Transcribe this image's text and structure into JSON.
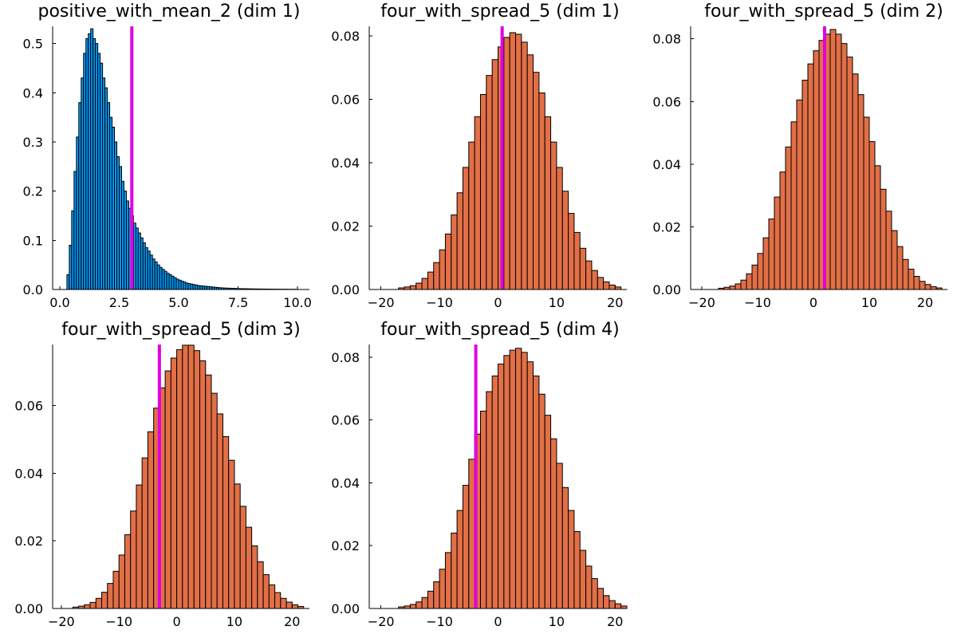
{
  "chart_data": [
    {
      "type": "bar",
      "title": "positive_with_mean_2 (dim 1)",
      "bar_color": "#009AFA",
      "marker_color": "#E100E1",
      "marker_x": 3.03,
      "xlim": [
        -0.3,
        10.5
      ],
      "ylim": [
        0,
        0.535
      ],
      "xticks": [
        0,
        2.5,
        5,
        7.5,
        10
      ],
      "xtick_labels": [
        "0.0",
        "2.5",
        "5.0",
        "7.5",
        "10.0"
      ],
      "yticks": [
        0,
        0.1,
        0.2,
        0.3,
        0.4,
        0.5
      ],
      "ytick_labels": [
        "0.0",
        "0.1",
        "0.2",
        "0.3",
        "0.4",
        "0.5"
      ],
      "bin_start": 0.3,
      "bin_width": 0.1,
      "values": [
        0.03,
        0.09,
        0.16,
        0.24,
        0.31,
        0.38,
        0.43,
        0.48,
        0.51,
        0.52,
        0.53,
        0.51,
        0.5,
        0.48,
        0.46,
        0.43,
        0.41,
        0.38,
        0.35,
        0.33,
        0.3,
        0.27,
        0.25,
        0.22,
        0.2,
        0.18,
        0.165,
        0.15,
        0.135,
        0.125,
        0.115,
        0.105,
        0.095,
        0.085,
        0.078,
        0.07,
        0.062,
        0.056,
        0.05,
        0.045,
        0.041,
        0.037,
        0.033,
        0.03,
        0.027,
        0.024,
        0.021,
        0.019,
        0.017,
        0.015,
        0.013,
        0.012,
        0.011,
        0.01,
        0.009,
        0.008,
        0.0075,
        0.007,
        0.0065,
        0.006,
        0.0055,
        0.005,
        0.0045,
        0.004,
        0.0036,
        0.0032,
        0.003,
        0.0028,
        0.0026,
        0.0024,
        0.0022,
        0.002,
        0.0018,
        0.0017,
        0.0016,
        0.0015,
        0.0014,
        0.0013,
        0.0012,
        0.0011,
        0.001,
        0.001,
        0.0009,
        0.0009,
        0.0008,
        0.0008,
        0.0007,
        0.0007,
        0.0006,
        0.0006,
        0.0005,
        0.0005,
        0.0005,
        0.0004,
        0.0004,
        0.0004,
        0.0003
      ]
    },
    {
      "type": "bar",
      "title": "four_with_spread_5 (dim 1)",
      "bar_color": "#E26F46",
      "marker_color": "#E100E1",
      "marker_x": 0.7,
      "xlim": [
        -22,
        22
      ],
      "ylim": [
        0,
        0.083
      ],
      "xticks": [
        -20,
        -10,
        0,
        10,
        20
      ],
      "xtick_labels": [
        "−20",
        "−10",
        "0",
        "10",
        "20"
      ],
      "yticks": [
        0,
        0.02,
        0.04,
        0.06,
        0.08
      ],
      "ytick_labels": [
        "0.00",
        "0.02",
        "0.04",
        "0.06",
        "0.08"
      ],
      "bin_start": -17,
      "bin_width": 1,
      "values": [
        0.0005,
        0.0008,
        0.0012,
        0.002,
        0.0035,
        0.0055,
        0.0085,
        0.0125,
        0.0175,
        0.0235,
        0.0305,
        0.0385,
        0.0465,
        0.0545,
        0.0615,
        0.0675,
        0.0725,
        0.0765,
        0.0795,
        0.081,
        0.0805,
        0.078,
        0.074,
        0.0685,
        0.062,
        0.0545,
        0.0465,
        0.0385,
        0.031,
        0.024,
        0.018,
        0.013,
        0.009,
        0.006,
        0.0038,
        0.0024,
        0.0014,
        0.0008
      ]
    },
    {
      "type": "bar",
      "title": "four_with_spread_5 (dim 2)",
      "bar_color": "#E26F46",
      "marker_color": "#E100E1",
      "marker_x": 2.0,
      "xlim": [
        -22,
        24
      ],
      "ylim": [
        0,
        0.084
      ],
      "xticks": [
        -20,
        -10,
        0,
        10,
        20
      ],
      "xtick_labels": [
        "−20",
        "−10",
        "0",
        "10",
        "20"
      ],
      "yticks": [
        0,
        0.02,
        0.04,
        0.06,
        0.08
      ],
      "ytick_labels": [
        "0.00",
        "0.02",
        "0.04",
        "0.06",
        "0.08"
      ],
      "bin_start": -17,
      "bin_width": 1,
      "values": [
        0.0004,
        0.0007,
        0.0011,
        0.0018,
        0.003,
        0.005,
        0.0078,
        0.0115,
        0.0165,
        0.0225,
        0.0295,
        0.0375,
        0.0455,
        0.0535,
        0.0605,
        0.0668,
        0.072,
        0.0762,
        0.0795,
        0.0815,
        0.083,
        0.0815,
        0.0785,
        0.0742,
        0.0688,
        0.0622,
        0.055,
        0.0472,
        0.0395,
        0.032,
        0.025,
        0.0188,
        0.0137,
        0.0096,
        0.0065,
        0.0042,
        0.0026,
        0.0016,
        0.0009,
        0.0005
      ]
    },
    {
      "type": "bar",
      "title": "four_with_spread_5 (dim 3)",
      "bar_color": "#E26F46",
      "marker_color": "#E100E1",
      "marker_x": -3.0,
      "xlim": [
        -21.5,
        23
      ],
      "ylim": [
        0,
        0.078
      ],
      "xticks": [
        -20,
        -10,
        0,
        10,
        20
      ],
      "xtick_labels": [
        "−20",
        "−10",
        "0",
        "10",
        "20"
      ],
      "yticks": [
        0,
        0.02,
        0.04,
        0.06
      ],
      "ytick_labels": [
        "0.00",
        "0.02",
        "0.04",
        "0.06"
      ],
      "bin_start": -18,
      "bin_width": 1,
      "values": [
        0.0004,
        0.0007,
        0.0011,
        0.0018,
        0.003,
        0.0048,
        0.0074,
        0.011,
        0.0158,
        0.0218,
        0.0288,
        0.0365,
        0.0445,
        0.0522,
        0.0592,
        0.0652,
        0.0702,
        0.074,
        0.0765,
        0.0778,
        0.0778,
        0.0762,
        0.0732,
        0.069,
        0.0636,
        0.0575,
        0.0508,
        0.0438,
        0.0368,
        0.0302,
        0.024,
        0.0185,
        0.0138,
        0.01,
        0.007,
        0.0047,
        0.003,
        0.0019,
        0.0011,
        0.0006
      ]
    },
    {
      "type": "bar",
      "title": "four_with_spread_5 (dim 4)",
      "bar_color": "#E26F46",
      "marker_color": "#E100E1",
      "marker_x": -3.8,
      "xlim": [
        -22,
        22
      ],
      "ylim": [
        0,
        0.084
      ],
      "xticks": [
        -20,
        -10,
        0,
        10,
        20
      ],
      "xtick_labels": [
        "−20",
        "−10",
        "0",
        "10",
        "20"
      ],
      "yticks": [
        0,
        0.02,
        0.04,
        0.06,
        0.08
      ],
      "ytick_labels": [
        "0.00",
        "0.02",
        "0.04",
        "0.06",
        "0.08"
      ],
      "bin_start": -17,
      "bin_width": 1,
      "values": [
        0.0005,
        0.0008,
        0.0013,
        0.0021,
        0.0035,
        0.0055,
        0.0085,
        0.0125,
        0.0178,
        0.024,
        0.0312,
        0.0392,
        0.0475,
        0.0555,
        0.0628,
        0.069,
        0.074,
        0.0778,
        0.0805,
        0.0822,
        0.0828,
        0.0815,
        0.0785,
        0.074,
        0.0682,
        0.0615,
        0.054,
        0.0462,
        0.0385,
        0.0312,
        0.0245,
        0.0185,
        0.0135,
        0.0095,
        0.0064,
        0.0041,
        0.0025,
        0.0015,
        0.0008
      ]
    }
  ]
}
